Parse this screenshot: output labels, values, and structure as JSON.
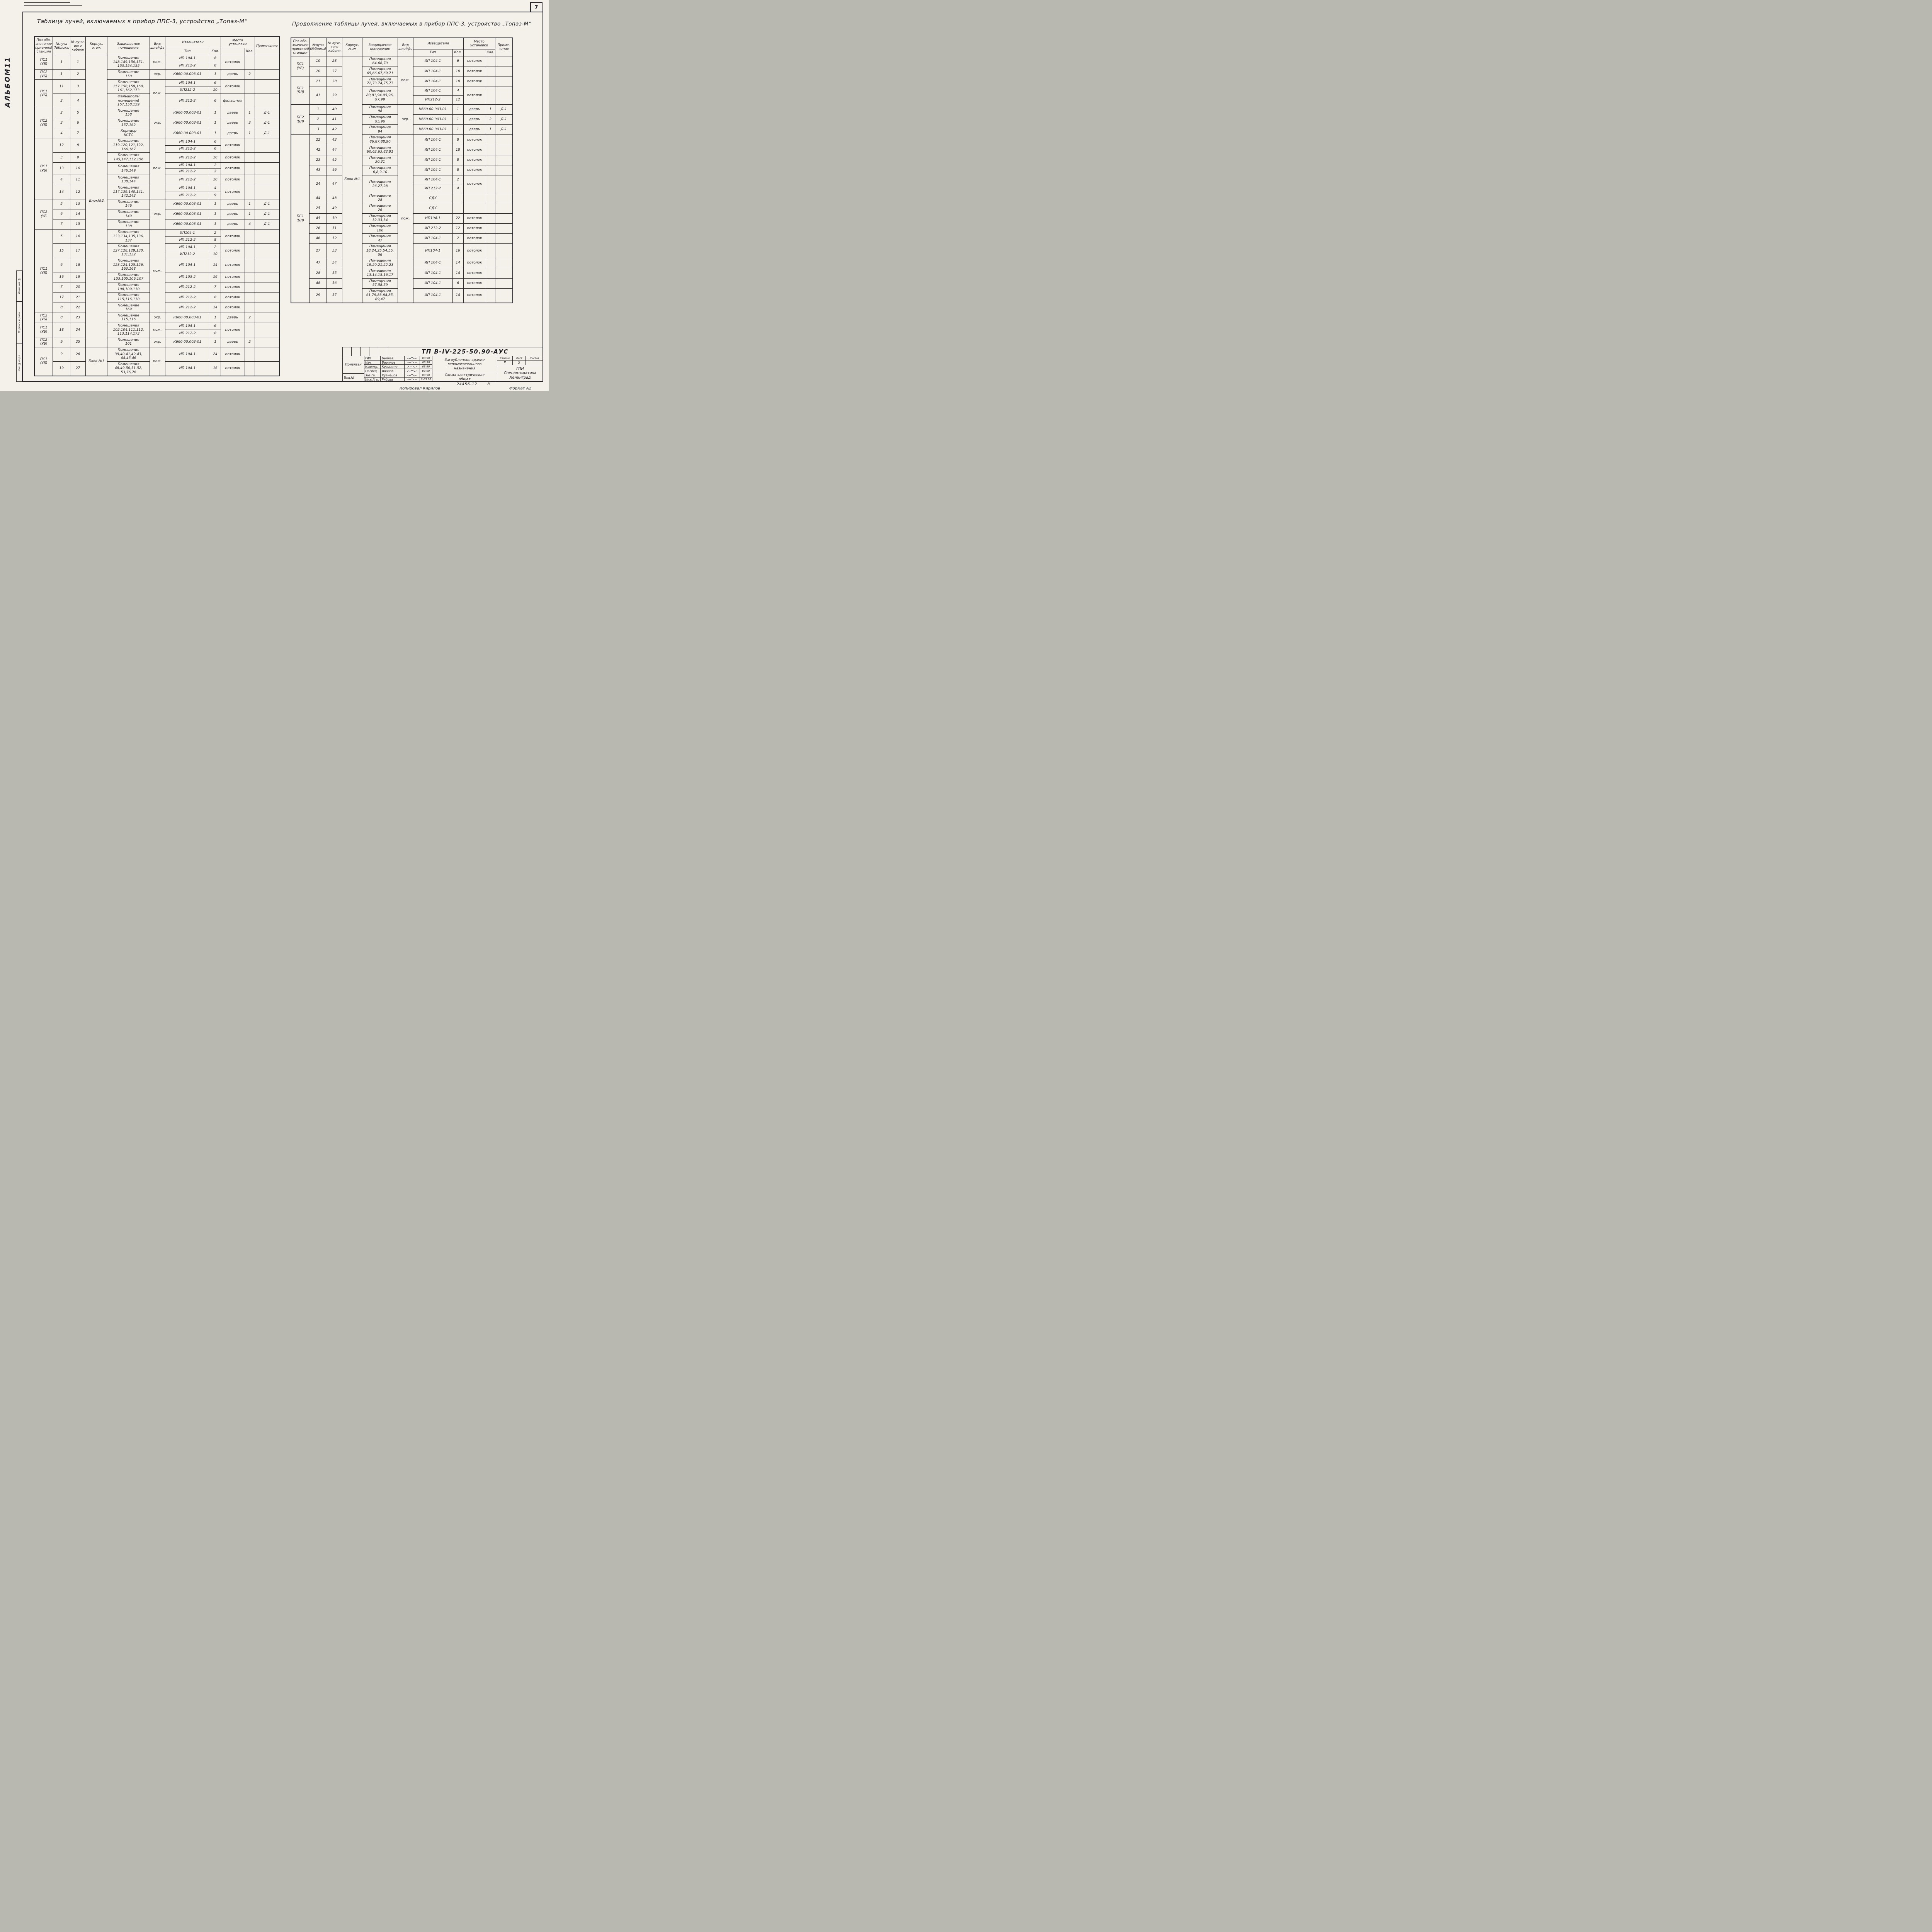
{
  "page": {
    "page_number": "7",
    "album_label": "АЛЬБОМ11",
    "margin_labels": [
      "Взам.инв.№",
      "Подпись и дата",
      "Инв.№ подл."
    ]
  },
  "headers": {
    "station": "Поз.обо-\nзначение\nприемной\nстанции",
    "ray": "№луча\n(№блока)",
    "cable": "№ луче-\nвого\nкабеля",
    "block": "Корпус,\nэтаж",
    "room": "Защищаемое\nпомещение",
    "vid": "Вид\nшлейфа",
    "detectors": "Извещатели",
    "det_type": "Тип",
    "det_qty": "Кол.",
    "place": "Место\nустановки",
    "place_qty": "Кол.",
    "note_left": "Примечание",
    "note_right": "Приме-\nчание"
  },
  "left_table": {
    "title": "Таблица лучей, включаемых в прибор  ППС-3, устройство „Топаз-М”",
    "rows": [
      {
        "st": "ПС1\n(УБ)",
        "sts": 2,
        "ray": "1",
        "cab": "1",
        "blk": "Блок№2",
        "blks": 33,
        "room": "Помещения\n148,149,150,151,\n153,154,155",
        "vid": "пож.",
        "vids": 2,
        "dets": [
          [
            "ИП 104-1",
            "8"
          ],
          [
            "ИП 212-2",
            "8"
          ]
        ],
        "pl": "потолок",
        "plq": "",
        "note": ""
      },
      {
        "st": "ПС2\n(УБ)",
        "sts": 1,
        "ray": "1",
        "cab": "2",
        "room": "Помещение\n150",
        "vid": "охр.",
        "vids": 1,
        "dets": [
          [
            "К660.00.003-01",
            "1"
          ]
        ],
        "pl": "дверь",
        "plq": "2",
        "note": ""
      },
      {
        "st": "ПС1\n(УБ)",
        "sts": 3,
        "ray": "11",
        "cab": "3",
        "room": "Помещения\n157,158,159,160,\n161,162,173",
        "vid": "пож.",
        "vids": 3,
        "dets": [
          [
            "ИП 104-1",
            "6"
          ],
          [
            "ИП212-2",
            "10"
          ]
        ],
        "pl": "потолок",
        "plq": "",
        "note": ""
      },
      {
        "ray": "2",
        "cab": "4",
        "room": "Фальшполы\nпомещений\n157,158,159",
        "dets": [
          [
            "ИП 212-2",
            "6"
          ]
        ],
        "pl": "фальшпол",
        "plq": "",
        "note": ""
      },
      {
        "st": "ПС2\n(УБ)",
        "sts": 3,
        "ray": "2",
        "cab": "5",
        "room": "Помещение\n158",
        "vid": "охр.",
        "vids": 3,
        "dets": [
          [
            "К660.00.003-01",
            "1"
          ]
        ],
        "pl": "дверь",
        "plq": "1",
        "note": "Д-1"
      },
      {
        "ray": "3",
        "cab": "6",
        "room": "Помещение\n157,162",
        "dets": [
          [
            "К660.00.003-01",
            "1"
          ]
        ],
        "pl": "дверь",
        "plq": "3",
        "note": "Д-1"
      },
      {
        "ray": "4",
        "cab": "7",
        "room": "Коридор\nКСТС",
        "dets": [
          [
            "К660.00.003-01",
            "1"
          ]
        ],
        "pl": "дверь",
        "plq": "1",
        "note": "Д-1"
      },
      {
        "st": "ПС1\n(УБ)",
        "sts": 8,
        "ray": "12",
        "cab": "8",
        "room": "Помещения\n119,120,121,122,\n166,167",
        "vid": "пож.",
        "vids": 8,
        "dets": [
          [
            "ИП 104-1",
            "6"
          ],
          [
            "ИП 212-2",
            "6"
          ]
        ],
        "pl": "потолок",
        "plq": "",
        "note": ""
      },
      {
        "ray": "3",
        "cab": "9",
        "room": "Помещения\n145,147,152,156",
        "dets": [
          [
            "ИП 212-2",
            "10"
          ]
        ],
        "pl": "потолок",
        "plq": "",
        "note": ""
      },
      {
        "ray": "13",
        "cab": "10",
        "room": "Помещения\n146,149",
        "dets": [
          [
            "ИП 104-1",
            "2"
          ],
          [
            "ИП 212-2",
            "2"
          ]
        ],
        "pl": "потолок",
        "plq": "",
        "note": ""
      },
      {
        "ray": "4",
        "cab": "11",
        "room": "Помещения\n138,144",
        "dets": [
          [
            "ИП 212-2",
            "10"
          ]
        ],
        "pl": "потолок",
        "plq": "",
        "note": ""
      },
      {
        "ray": "14",
        "cab": "12",
        "room": "Помещения\n117,139,140,141,\n142,143",
        "dets": [
          [
            "ИП 104-1",
            "4"
          ],
          [
            "ИП 212-2",
            "9"
          ]
        ],
        "pl": "потолок",
        "plq": "",
        "note": ""
      },
      {
        "st": "ПС2\n(УБ",
        "sts": 3,
        "ray": "5",
        "cab": "13",
        "room": "Помещение\n146",
        "vid": "охр.",
        "vids": 3,
        "dets": [
          [
            "К660.00.003-01",
            "1"
          ]
        ],
        "pl": "дверь",
        "plq": "1",
        "note": "Д-1"
      },
      {
        "ray": "6",
        "cab": "14",
        "room": "Помещение\n149",
        "dets": [
          [
            "К660.00.003-01",
            "1"
          ]
        ],
        "pl": "дверь",
        "plq": "1",
        "note": "Д-1"
      },
      {
        "ray": "7",
        "cab": "15",
        "room": "Помещение\n138",
        "dets": [
          [
            "К660.00.003-01",
            "1"
          ]
        ],
        "pl": "дверь",
        "plq": "4",
        "note": "Д-1"
      },
      {
        "st": "ПС1\n(УБ)",
        "sts": 9,
        "ray": "5",
        "cab": "16",
        "room": "Помещения\n133,134,135,136,\n137",
        "vid": "пож.",
        "vids": 9,
        "dets": [
          [
            "ИП104-1",
            "2"
          ],
          [
            "ИП 212-2",
            "8"
          ]
        ],
        "pl": "потолок",
        "plq": "",
        "note": ""
      },
      {
        "ray": "15",
        "cab": "17",
        "room": "Помещения\n127,128,129,130,\n131,132",
        "dets": [
          [
            "ИП 104-1",
            "2"
          ],
          [
            "ИП212-2",
            "10"
          ]
        ],
        "pl": "потолок",
        "plq": "",
        "note": ""
      },
      {
        "ray": "6",
        "cab": "18",
        "room": "Помещения\n123,124,125,126,\n163,168",
        "dets": [
          [
            "ИП 104-1",
            "14"
          ]
        ],
        "pl": "потолок",
        "plq": "",
        "note": ""
      },
      {
        "ray": "16",
        "cab": "19",
        "room": "Помещения\n103,105,106,107",
        "dets": [
          [
            "ИП 103-2",
            "16"
          ]
        ],
        "pl": "потолок",
        "plq": "",
        "note": ""
      },
      {
        "ray": "7",
        "cab": "20",
        "room": "Помещения\n108,109,110",
        "dets": [
          [
            "ИП 212-2",
            "7"
          ]
        ],
        "pl": "потолок",
        "plq": "",
        "note": ""
      },
      {
        "ray": "17",
        "cab": "21",
        "room": "Помещения\n115,116,118",
        "dets": [
          [
            "ИП 212-2",
            "8"
          ]
        ],
        "pl": "потолок",
        "plq": "",
        "note": ""
      },
      {
        "ray": "8",
        "cab": "22",
        "room": "Помещение\n169",
        "dets": [
          [
            "ИП 212-2",
            "14"
          ]
        ],
        "pl": "потолок",
        "plq": "",
        "note": ""
      },
      {
        "st": "ПС2\n(УБ)",
        "sts": 1,
        "ray": "8",
        "cab": "23",
        "room": "Помещение\n115,116",
        "vid": "охр.",
        "vids": 1,
        "dets": [
          [
            "К660.00.003-01",
            "1"
          ]
        ],
        "pl": "дверь",
        "plq": "2",
        "note": ""
      },
      {
        "st": "ПС1\n(УБ)",
        "sts": 2,
        "ray": "18",
        "cab": "24",
        "room": "Помещения\n102,104,111,112,\n113,114,173",
        "vid": "пож.",
        "vids": 2,
        "dets": [
          [
            "ИП 104-1",
            "6"
          ],
          [
            "ИП 212-2",
            "8"
          ]
        ],
        "pl": "потолок",
        "plq": "",
        "note": ""
      },
      {
        "st": "ПС2\n(УБ)",
        "sts": 1,
        "ray": "9",
        "cab": "25",
        "room": "Помещение\n101",
        "vid": "охр.",
        "vids": 1,
        "dets": [
          [
            "К660.00.003-01",
            "1"
          ]
        ],
        "pl": "дверь",
        "plq": "2",
        "note": ""
      },
      {
        "st": "ПС1\n(УБ)",
        "sts": 2,
        "ray": "9",
        "cab": "26",
        "blk": "Блок №1",
        "blks": 2,
        "room": "Помещения\n39,40,41,42,43,\n44,45,46",
        "vid": "пож.",
        "vids": 2,
        "dets": [
          [
            "ИП 104-1",
            "24"
          ]
        ],
        "pl": "потолок",
        "plq": "",
        "note": ""
      },
      {
        "ray": "19",
        "cab": "27",
        "room": "Помещения\n48,49,50,51,52,\n53,76,78",
        "dets": [
          [
            "ИП 104-1",
            "16"
          ]
        ],
        "pl": "потолок",
        "plq": "",
        "note": ""
      }
    ]
  },
  "right_table": {
    "title": "Продолжение таблицы лучей, включаемых в прибор ППС-3, устройство „Топаз-М”",
    "rows": [
      {
        "st": "ПС1\n(УБ)",
        "sts": 2,
        "ray": "10",
        "cab": "28",
        "blk": "Блок №1",
        "blks": 24,
        "room": "Помещения\n64,68,70",
        "vid": "пож.",
        "vids": 5,
        "dets": [
          [
            "ИП 104-1",
            "6"
          ]
        ],
        "pl": "потолок",
        "plq": "",
        "note": ""
      },
      {
        "ray": "20",
        "cab": "37",
        "room": "Помещения\n65,66,67,69,71",
        "dets": [
          [
            "ИП 104-1",
            "10"
          ]
        ],
        "pl": "потолок",
        "plq": "",
        "note": ""
      },
      {
        "st": "ПС1\n(БЛ)",
        "sts": 3,
        "ray": "21",
        "cab": "38",
        "room": "Помещения\n72,73,74,75,77",
        "dets": [
          [
            "ИП 104-1",
            "10"
          ]
        ],
        "pl": "потолок",
        "plq": "",
        "note": ""
      },
      {
        "ray": "41",
        "cab": "39",
        "room": "Помещения\n80,81,94,95,96,\n97,99",
        "dets": [
          [
            "ИП 104-1",
            "4"
          ],
          [
            "ИП212-2",
            "12"
          ]
        ],
        "pl": "потолок",
        "plq": "",
        "note": ""
      },
      {
        "st": "ПС2\n(БЛ)",
        "sts": 3,
        "ray": "1",
        "cab": "40",
        "room": "Помещение\n98",
        "vid": "охр.",
        "vids": 3,
        "dets": [
          [
            "К660.00.003-01",
            "1"
          ]
        ],
        "pl": "дверь",
        "plq": "1",
        "note": "Д-1"
      },
      {
        "ray": "2",
        "cab": "41",
        "room": "Помещения\n95,96",
        "dets": [
          [
            "К660.00.003-01",
            "1"
          ]
        ],
        "pl": "дверь",
        "plq": "2",
        "note": "Д-1"
      },
      {
        "ray": "3",
        "cab": "42",
        "room": "Помещение\n94",
        "dets": [
          [
            "К660.00.003-01",
            "1"
          ]
        ],
        "pl": "дверь",
        "plq": "1",
        "note": "Д-1"
      },
      {
        "st": "ПС1\n(БЛ)",
        "sts": 16,
        "ray": "22",
        "cab": "43",
        "room": "Помещения\n86,87,88,90",
        "vid": "пож.",
        "vids": 16,
        "dets": [
          [
            "ИП 104-1",
            "8"
          ]
        ],
        "pl": "потолок",
        "plq": "",
        "note": ""
      },
      {
        "ray": "42",
        "cab": "44",
        "room": "Помещения\n60,62,63,82,91",
        "dets": [
          [
            "ИП 104-1",
            "18"
          ]
        ],
        "pl": "потолок",
        "plq": "",
        "note": ""
      },
      {
        "ray": "23",
        "cab": "45",
        "room": "Помещения\n30,31",
        "dets": [
          [
            "ИП 104-1",
            "8"
          ]
        ],
        "pl": "потолок",
        "plq": "",
        "note": ""
      },
      {
        "ray": "43",
        "cab": "46",
        "room": "Помещения\n6,8,9,10",
        "dets": [
          [
            "ИП 104-1",
            "8"
          ]
        ],
        "pl": "потолок",
        "plq": "",
        "note": ""
      },
      {
        "ray": "24",
        "cab": "47",
        "room": "Помещения\n26,27,28",
        "dets": [
          [
            "ИП 104-1",
            "2"
          ],
          [
            "ИП 212-2",
            "4"
          ]
        ],
        "pl": "потолок",
        "plq": "",
        "note": ""
      },
      {
        "ray": "44",
        "cab": "48",
        "room": "Помещение\n28",
        "dets": [
          [
            "СДУ",
            ""
          ]
        ],
        "pl": "",
        "plq": "",
        "note": ""
      },
      {
        "ray": "25",
        "cab": "49",
        "room": "Помещение\n26",
        "dets": [
          [
            "СДУ",
            ""
          ]
        ],
        "pl": "",
        "plq": "",
        "note": ""
      },
      {
        "ray": "45",
        "cab": "50",
        "room": "Помещения\n32,33,34",
        "dets": [
          [
            "ИП104-1",
            "22"
          ]
        ],
        "pl": "потолок",
        "plq": "",
        "note": ""
      },
      {
        "ray": "26",
        "cab": "51",
        "room": "Помещение\n100",
        "dets": [
          [
            "ИП 212-2",
            "12"
          ]
        ],
        "pl": "потолок",
        "plq": "",
        "note": ""
      },
      {
        "ray": "46",
        "cab": "52",
        "room": "Помещение\n47",
        "dets": [
          [
            "ИП 104-1",
            "2"
          ]
        ],
        "pl": "потолок",
        "plq": "",
        "note": ""
      },
      {
        "ray": "27",
        "cab": "53",
        "room": "Помещения\n18,24,25,54,55,\n56",
        "dets": [
          [
            "ИП104-1",
            "16"
          ]
        ],
        "pl": "потолок",
        "plq": "",
        "note": ""
      },
      {
        "ray": "47",
        "cab": "54",
        "room": "Помещения\n19,20,21,22,23",
        "dets": [
          [
            "ИП 104-1",
            "14"
          ]
        ],
        "pl": "потолок",
        "plq": "",
        "note": ""
      },
      {
        "ray": "28",
        "cab": "55",
        "room": "Помещения\n13,14,15,16,17",
        "dets": [
          [
            "ИП 104-1",
            "14"
          ]
        ],
        "pl": "потолок",
        "plq": "",
        "note": ""
      },
      {
        "ray": "48",
        "cab": "56",
        "room": "Помещения\n57,58,59",
        "dets": [
          [
            "ИП 104-1",
            "6"
          ]
        ],
        "pl": "потолок",
        "plq": "",
        "note": ""
      },
      {
        "ray": "29",
        "cab": "57",
        "room": "Помещения\n61,79,83,84,85,\n89,47",
        "dets": [
          [
            "ИП 104-1",
            "14"
          ]
        ],
        "pl": "потолок",
        "plq": "",
        "note": ""
      }
    ]
  },
  "title_block": {
    "doc_number": "ТП В-IV-225-50.90-АУС",
    "privyazan": "Привязан",
    "inv_label": "Инв.№",
    "signatures": [
      {
        "role": "ГИП",
        "name": "Беляев",
        "date": "03.90"
      },
      {
        "role": "Нач.",
        "name": "Баринов",
        "date": "03.90"
      },
      {
        "role": "Н.контр.",
        "name": "Кузьмина",
        "date": "03.90"
      },
      {
        "role": "Гл.спец.",
        "name": "Иванов",
        "date": "03.90"
      },
      {
        "role": "Зав.гр.",
        "name": "Кузнецов",
        "date": "03.90"
      },
      {
        "role": "Инж.III к.",
        "name": "Рябова",
        "date": "6.03.90"
      }
    ],
    "project_title": "Заглубленное здание\nвспомогательного\nназначения",
    "drawing_title": "Схема электрическая\nобщая",
    "stage_label": "Стадия",
    "sheet_label": "Лист",
    "sheets_label": "Листов",
    "stage": "Р",
    "sheet": "5",
    "sheets": "",
    "org": "ГПИ\nСпецавтоматика\nЛенинград"
  },
  "footer": {
    "number": "24456-12",
    "number_suffix": "8",
    "copied": "Копировал Кирилов",
    "format": "Формат А2"
  }
}
